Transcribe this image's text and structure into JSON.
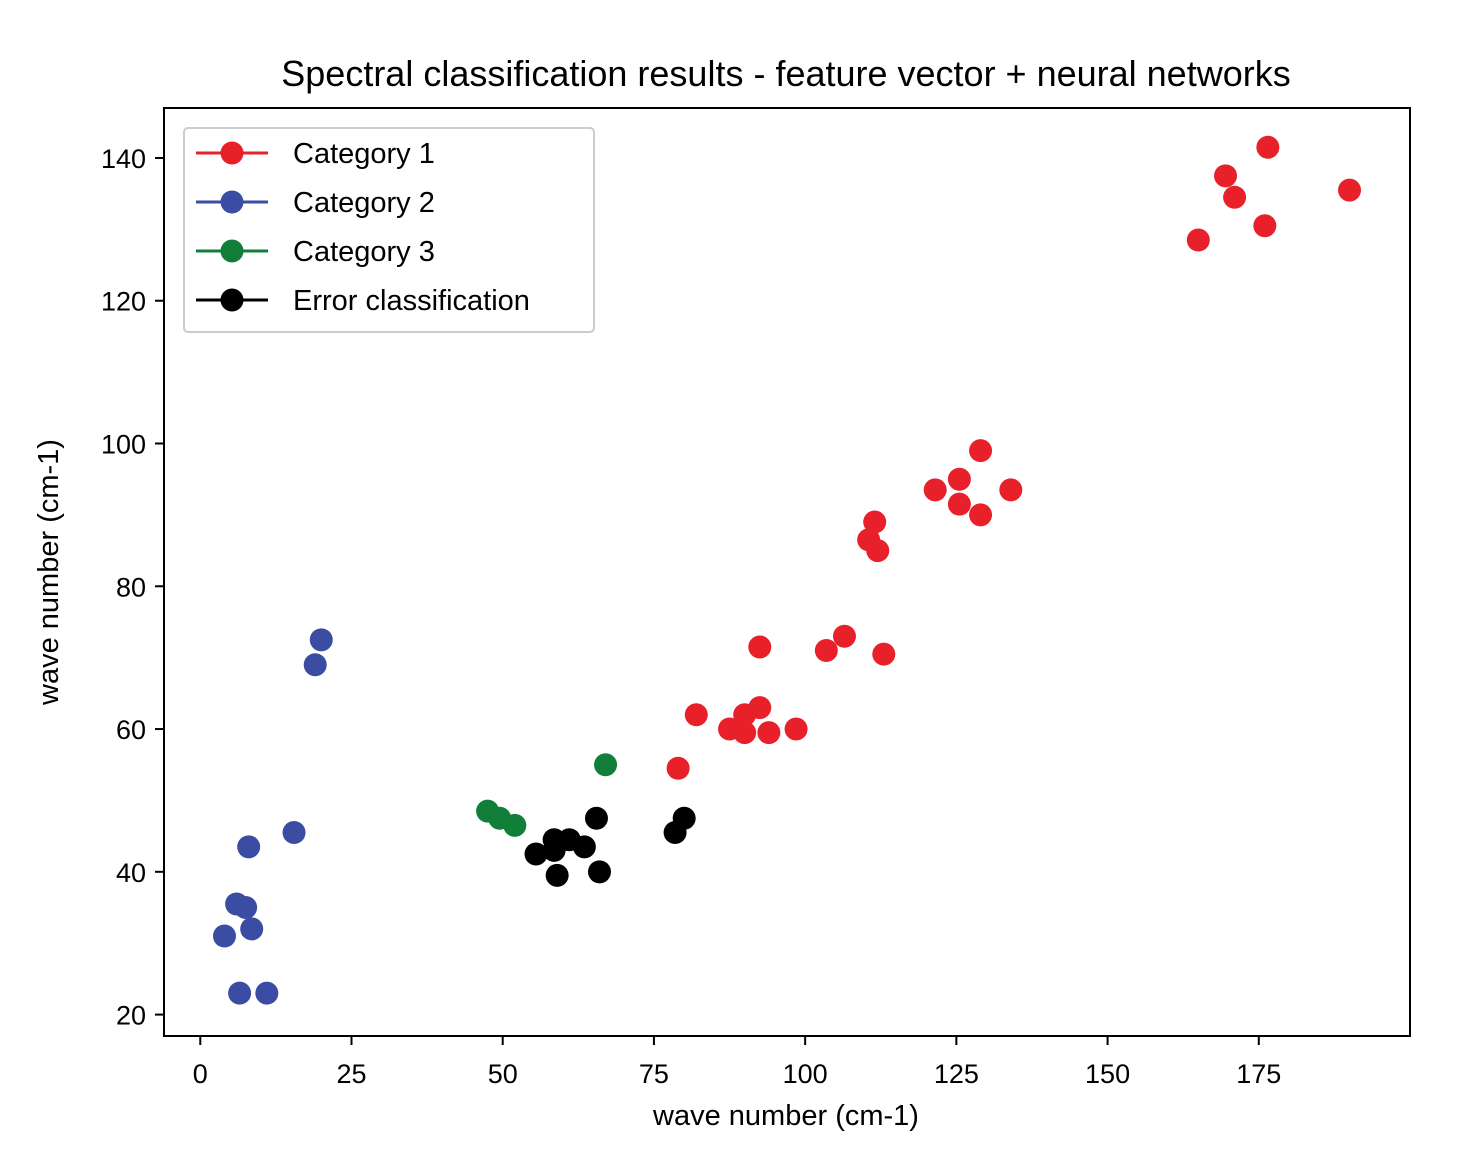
{
  "chart_data": {
    "type": "scatter",
    "title": "Spectral classification results - feature vector + neural networks",
    "xlabel": "wave number (cm-1)",
    "ylabel": "wave number (cm-1)",
    "xlim": [
      -6,
      200
    ],
    "ylim": [
      17,
      147
    ],
    "xticks": [
      0,
      25,
      50,
      75,
      100,
      125,
      150,
      175
    ],
    "yticks": [
      20,
      40,
      60,
      80,
      100,
      120,
      140
    ],
    "grid": false,
    "legend_position": "top-left",
    "series": [
      {
        "name": "Category 1",
        "color": "#e8202a",
        "points": [
          [
            176.5,
            141.5
          ],
          [
            169.5,
            137.5
          ],
          [
            171,
            134.5
          ],
          [
            190,
            135.5
          ],
          [
            165,
            128.5
          ],
          [
            176,
            130.5
          ],
          [
            129,
            99
          ],
          [
            125.5,
            95
          ],
          [
            121.5,
            93.5
          ],
          [
            134,
            93.5
          ],
          [
            125.5,
            91.5
          ],
          [
            129,
            90
          ],
          [
            111.5,
            89
          ],
          [
            110.5,
            86.5
          ],
          [
            112,
            85
          ],
          [
            92.5,
            71.5
          ],
          [
            106.5,
            73
          ],
          [
            103.5,
            71
          ],
          [
            113,
            70.5
          ],
          [
            82,
            62
          ],
          [
            92.5,
            63
          ],
          [
            90,
            62
          ],
          [
            87.5,
            60
          ],
          [
            90,
            59.5
          ],
          [
            94,
            59.5
          ],
          [
            98.5,
            60
          ],
          [
            79,
            54.5
          ]
        ]
      },
      {
        "name": "Category 2",
        "color": "#3a4da2",
        "points": [
          [
            20,
            72.5
          ],
          [
            19,
            69
          ],
          [
            15.5,
            45.5
          ],
          [
            8,
            43.5
          ],
          [
            6,
            35.5
          ],
          [
            7.5,
            35
          ],
          [
            8.5,
            32
          ],
          [
            4,
            31
          ],
          [
            6.5,
            23
          ],
          [
            11,
            23
          ]
        ]
      },
      {
        "name": "Category 3",
        "color": "#117f3a",
        "points": [
          [
            67,
            55
          ],
          [
            47.5,
            48.5
          ],
          [
            49.5,
            47.5
          ],
          [
            52,
            46.5
          ]
        ]
      },
      {
        "name": "Error classification",
        "color": "#000000",
        "points": [
          [
            65.5,
            47.5
          ],
          [
            58.5,
            44.5
          ],
          [
            61,
            44.5
          ],
          [
            63.5,
            43.5
          ],
          [
            58.5,
            43
          ],
          [
            55.5,
            42.5
          ],
          [
            59,
            39.5
          ],
          [
            66,
            40
          ],
          [
            78.5,
            45.5
          ],
          [
            80,
            47.5
          ]
        ]
      }
    ]
  }
}
